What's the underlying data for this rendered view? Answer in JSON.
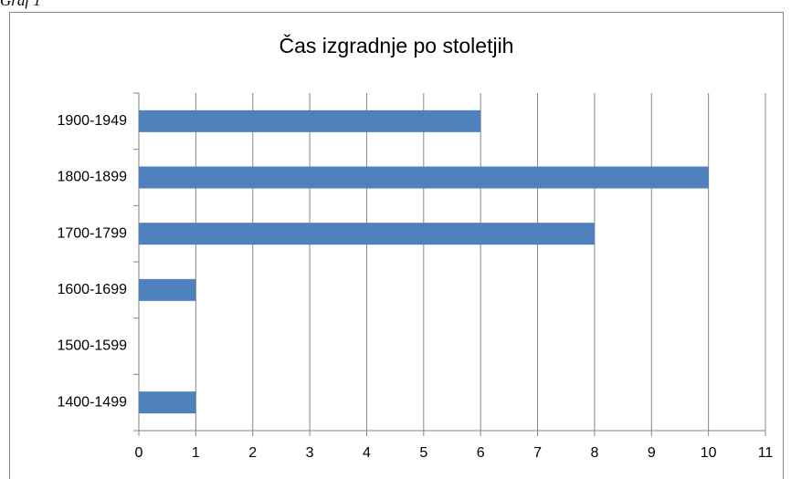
{
  "caption": "Graf 1",
  "chart_data": {
    "type": "barh",
    "title": "Čas izgradnje po stoletjih",
    "categories": [
      "1400-1499",
      "1500-1599",
      "1600-1699",
      "1700-1799",
      "1800-1899",
      "1900-1949"
    ],
    "values": [
      1,
      0,
      1,
      8,
      10,
      6
    ],
    "color": "#4f81bd",
    "xlim": [
      0,
      11
    ],
    "xticks": [
      0,
      1,
      2,
      3,
      4,
      5,
      6,
      7,
      8,
      9,
      10,
      11
    ],
    "grid": true
  }
}
